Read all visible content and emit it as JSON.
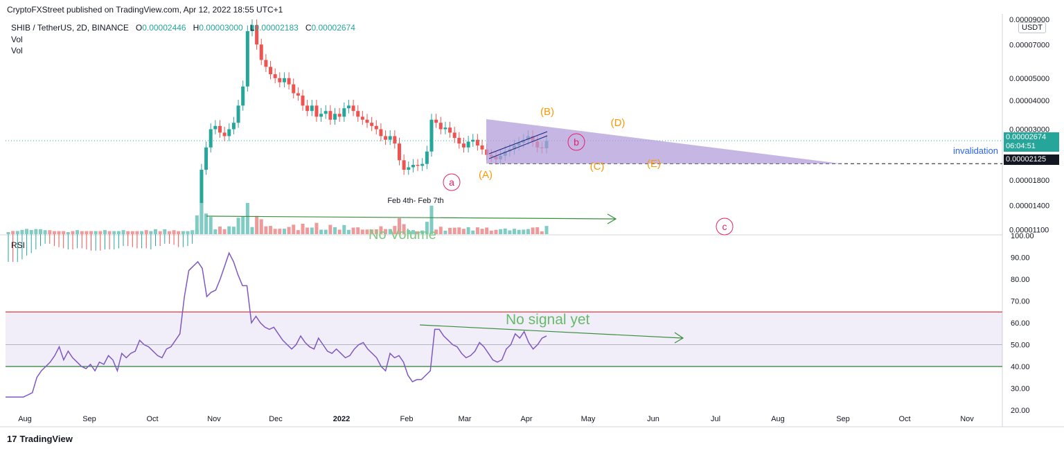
{
  "header": {
    "published": "CryptoFXStreet published on TradingView.com, Apr 12, 2022 18:55 UTC+1",
    "symbol": "SHIB / TetherUS, 2D, BINANCE",
    "o_label": "O",
    "o_value": "0.00002446",
    "h_label": "H",
    "h_value": "0.00003000",
    "l_label": "L",
    "l_value": "0.00002183",
    "c_label": "C",
    "c_value": "0.00002674",
    "vol1": "Vol",
    "vol2": "Vol"
  },
  "currency_badge": "USDT",
  "price_tags": {
    "last_price": "0.00002674",
    "countdown": "06:04:51",
    "invalidation_price": "0.00002125"
  },
  "annotations": {
    "invalidation": "invalidation",
    "feb_range": "Feb 4th- Feb 7th",
    "no_volume": "No Volume",
    "no_signal": "No signal yet",
    "wave_A": "(A)",
    "wave_B": "(B)",
    "wave_C": "(C)",
    "wave_D": "(D)",
    "wave_E": "(E)",
    "wave_a": "a",
    "wave_b": "b",
    "wave_c": "c"
  },
  "rsi_label": "RSI",
  "footer_logo": "TradingView",
  "colors": {
    "up": "#26a69a",
    "down": "#ef5350",
    "rsi_line": "#7e57c2",
    "triangle": "#b39ddb",
    "wave_orange": "#ff9800",
    "wave_pink": "#e91e63",
    "annot_green": "#388e3c",
    "invalidation_blue": "#2962ff"
  },
  "chart_data": [
    {
      "type": "candlestick",
      "title": "SHIB / TetherUS, 2D, BINANCE",
      "scale": "log",
      "y_ticks": [
        "0.00009000",
        "0.00007000",
        "0.00005000",
        "0.00004000",
        "0.00003000",
        "0.00001800",
        "0.00001400",
        "0.00001100"
      ],
      "ylim": [
        1.05e-05,
        9e-05
      ],
      "x_ticks": [
        "Aug",
        "Sep",
        "Oct",
        "Nov",
        "Dec",
        "2022",
        "Feb",
        "Mar",
        "Apr",
        "May",
        "Jun",
        "Jul",
        "Aug",
        "Sep",
        "Oct",
        "Nov"
      ],
      "series_close_approx": [
        7.5e-06,
        7.4e-06,
        7.5e-06,
        7.7e-06,
        8e-06,
        8.2e-06,
        8.5e-06,
        8.8e-06,
        9e-06,
        8.8e-06,
        8.7e-06,
        8.6e-06,
        8.5e-06,
        8.5e-06,
        8.4e-06,
        8.6e-06,
        8.5e-06,
        8.4e-06,
        8.3e-06,
        8.4e-06,
        8.3e-06,
        8.5e-06,
        8.4e-06,
        8.5e-06,
        8.6e-06,
        8.8e-06,
        8.7e-06,
        8.6e-06,
        8.5e-06,
        8.6e-06,
        8.4e-06,
        8.5e-06,
        8.8e-06,
        8.7e-06,
        9e-06,
        8.9e-06,
        8.7e-06,
        8.6e-06,
        8.7e-06,
        8.8e-06,
        9e-06,
        1.1e-05,
        2e-05,
        2.5e-05,
        3e-05,
        3.1e-05,
        2.9e-05,
        2.8e-05,
        3e-05,
        3.2e-05,
        3.8e-05,
        4.6e-05,
        8e-05,
        8.5e-05,
        7e-05,
        6e-05,
        5.6e-05,
        5.2e-05,
        5e-05,
        4.8e-05,
        5e-05,
        4.7e-05,
        4.3e-05,
        4.2e-05,
        3.8e-05,
        3.6e-05,
        3.8e-05,
        3.4e-05,
        3.5e-05,
        3.6e-05,
        3.3e-05,
        3.5e-05,
        3.4e-05,
        3.7e-05,
        3.8e-05,
        3.6e-05,
        3.4e-05,
        3.3e-05,
        3.2e-05,
        3.1e-05,
        3e-05,
        2.8e-05,
        2.7e-05,
        2.8e-05,
        2.6e-05,
        2.2e-05,
        2e-05,
        2.05e-05,
        2.1e-05,
        2.08e-05,
        2.12e-05,
        2.4e-05,
        3.3e-05,
        3.2e-05,
        3e-05,
        3.05e-05,
        2.9e-05,
        2.75e-05,
        2.6e-05,
        2.5e-05,
        2.65e-05,
        2.7e-05,
        2.55e-05,
        2.45e-05,
        2.32e-05,
        2.28e-05,
        2.22e-05,
        2.3e-05,
        2.4e-05,
        2.45e-05,
        2.55e-05,
        2.62e-05,
        2.7e-05,
        2.8e-05,
        2.65e-05,
        2.5e-05,
        2.48e-05,
        2.67e-05
      ],
      "last_close": 2.674e-05,
      "invalidation_level": 2.125e-05,
      "volume_note": "No Volume",
      "date_note": "Feb 4th- Feb 7th"
    },
    {
      "type": "line",
      "title": "RSI",
      "y_ticks": [
        "100.00",
        "90.00",
        "80.00",
        "70.00",
        "60.00",
        "50.00",
        "40.00",
        "30.00",
        "20.00"
      ],
      "ylim": [
        20,
        100
      ],
      "bands": {
        "upper": 65,
        "middle": 50,
        "lower": 40
      },
      "series": [
        {
          "values": [
            26,
            26,
            26,
            26,
            26,
            27,
            28,
            35,
            38,
            40,
            42,
            45,
            49,
            43,
            47,
            44,
            42,
            40,
            39,
            41,
            38,
            42,
            41,
            45,
            43,
            38,
            46,
            44,
            46,
            47,
            52,
            50,
            49,
            47,
            45,
            44,
            48,
            49,
            52,
            55,
            72,
            84,
            86,
            88,
            85,
            72,
            74,
            75,
            80,
            86,
            92,
            88,
            82,
            77,
            77,
            60,
            63,
            60,
            58,
            57,
            58,
            55,
            52,
            50,
            48,
            50,
            54,
            51,
            49,
            48,
            53,
            50,
            47,
            46,
            48,
            46,
            44,
            45,
            48,
            50,
            51,
            48,
            46,
            44,
            40,
            38,
            46,
            44,
            45,
            42,
            36,
            33,
            34,
            34,
            36,
            38,
            57,
            57,
            54,
            52,
            50,
            49,
            46,
            44,
            45,
            47,
            51,
            49,
            46,
            43,
            42,
            43,
            48,
            50,
            55,
            53,
            56,
            51,
            48,
            50,
            53,
            54
          ]
        }
      ],
      "annotation": "No signal yet"
    }
  ]
}
